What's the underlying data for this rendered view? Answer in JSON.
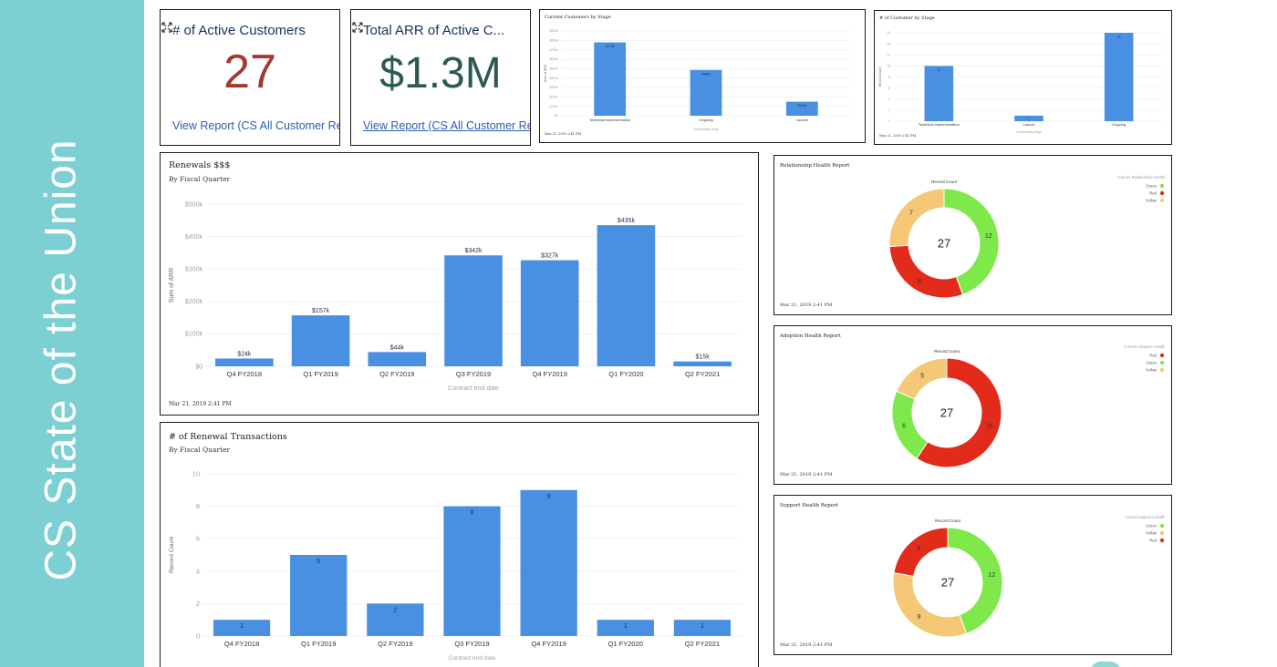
{
  "sidebar": {
    "title": "CS State of the Union"
  },
  "colors": {
    "band": "#7ccfd3",
    "bar": "#4a90e2",
    "green": "#7fe84a",
    "red": "#e32b1b",
    "yellow": "#f4c876",
    "customers_value": "#a33a2f",
    "arr_value": "#2c5a52"
  },
  "active_customers": {
    "title": "# of Active Customers",
    "value": "27",
    "link": "View Report (CS All Customer Re..."
  },
  "total_arr": {
    "title": "Total ARR of Active C...",
    "value": "$1.3M",
    "link": "View Report (CS All Customer Re..."
  },
  "current_customers_stage": {
    "title": "Current  Customers  by Stage",
    "timestamp": "Mar 21, 2019  2:41  PM",
    "chart_data": {
      "type": "bar",
      "categories": [
        "Technical Implementation",
        "Ongoing",
        "Launch"
      ],
      "values": [
        779000,
        486000,
        149000
      ],
      "value_labels": [
        "$779k",
        "$486k",
        "$149k"
      ],
      "ylim": [
        0,
        900000
      ],
      "yticks": [
        "$0",
        "$100k",
        "$200k",
        "$300k",
        "$400k",
        "$500k",
        "$600k",
        "$700k",
        "$800k",
        "$900k"
      ],
      "ylabel": "Sum of ARR",
      "xlabel": "Onboarding stage"
    }
  },
  "customer_stage_count": {
    "title": "# of Customer  by Stage",
    "timestamp": "Mar 21, 2019  2:41  PM",
    "chart_data": {
      "type": "bar",
      "categories": [
        "Technical Implementation",
        "Launch",
        "Ongoing"
      ],
      "values": [
        10,
        1,
        16
      ],
      "ylim": [
        0,
        16
      ],
      "yticks": [
        "0",
        "2",
        "4",
        "6",
        "8",
        "10",
        "12",
        "14",
        "16"
      ],
      "ylabel": "Record Count",
      "xlabel": "Onboarding stage"
    }
  },
  "renewals": {
    "title": "Renewals  $$$",
    "subtitle": "By Fiscal  Quarter",
    "timestamp": "Mar 21, 2019  2:41  PM",
    "chart_data": {
      "type": "bar",
      "categories": [
        "Q4 FY2018",
        "Q1 FY2019",
        "Q2 FY2019",
        "Q3 FY2019",
        "Q4 FY2019",
        "Q1 FY2020",
        "Q2 FY2021"
      ],
      "values": [
        24000,
        157000,
        44000,
        342000,
        327000,
        435000,
        15000
      ],
      "value_labels": [
        "$24k",
        "$157k",
        "$44k",
        "$342k",
        "$327k",
        "$435k",
        "$15k"
      ],
      "ylim": [
        0,
        500000
      ],
      "yticks": [
        "$0",
        "$100k",
        "$200k",
        "$300k",
        "$400k",
        "$500k"
      ],
      "ylabel": "Sum of ARR",
      "xlabel": "Contract end date"
    }
  },
  "renewal_transactions": {
    "title": "# of Renewal  Transactions",
    "subtitle": "By Fiscal  Quarter",
    "chart_data": {
      "type": "bar",
      "categories": [
        "Q4 FY2018",
        "Q1 FY2019",
        "Q2 FY2019",
        "Q3 FY2019",
        "Q4 FY2019",
        "Q1 FY2020",
        "Q2 FY2021"
      ],
      "values": [
        1,
        5,
        2,
        8,
        9,
        1,
        1
      ],
      "ylim": [
        0,
        10
      ],
      "yticks": [
        "0",
        "2",
        "4",
        "6",
        "8",
        "10"
      ],
      "ylabel": "Record Count",
      "xlabel": "Contract end date"
    }
  },
  "relationship_health": {
    "title": "Relationship  Health  Report",
    "timestamp": "Mar 21, 2019  2:41  PM",
    "chart_data": {
      "type": "pie",
      "caption": "Record Count",
      "total": "27",
      "legend_title": "Current Relationship Health",
      "legend": [
        "Green",
        "Red",
        "Yellow"
      ],
      "slices": [
        {
          "label": "Green",
          "value": 12
        },
        {
          "label": "Red",
          "value": 8
        },
        {
          "label": "Yellow",
          "value": 7
        }
      ]
    }
  },
  "adoption_health": {
    "title": "Adoption  Health  Report",
    "timestamp": "Mar 21, 2019  2:41  PM",
    "chart_data": {
      "type": "pie",
      "caption": "Record Count",
      "total": "27",
      "legend_title": "Current Adoption Health",
      "legend": [
        "Red",
        "Green",
        "Yellow"
      ],
      "slices": [
        {
          "label": "Red",
          "value": 16
        },
        {
          "label": "Green",
          "value": 6
        },
        {
          "label": "Yellow",
          "value": 5
        }
      ]
    }
  },
  "support_health": {
    "title": "Support  Health  Report",
    "timestamp": "Mar 21, 2019  2:41  PM",
    "chart_data": {
      "type": "pie",
      "caption": "Record Count",
      "total": "27",
      "legend_title": "Current Support Health",
      "legend": [
        "Green",
        "Yellow",
        "Red"
      ],
      "slices": [
        {
          "label": "Green",
          "value": 12
        },
        {
          "label": "Yellow",
          "value": 9
        },
        {
          "label": "Red",
          "value": 6
        }
      ]
    }
  }
}
